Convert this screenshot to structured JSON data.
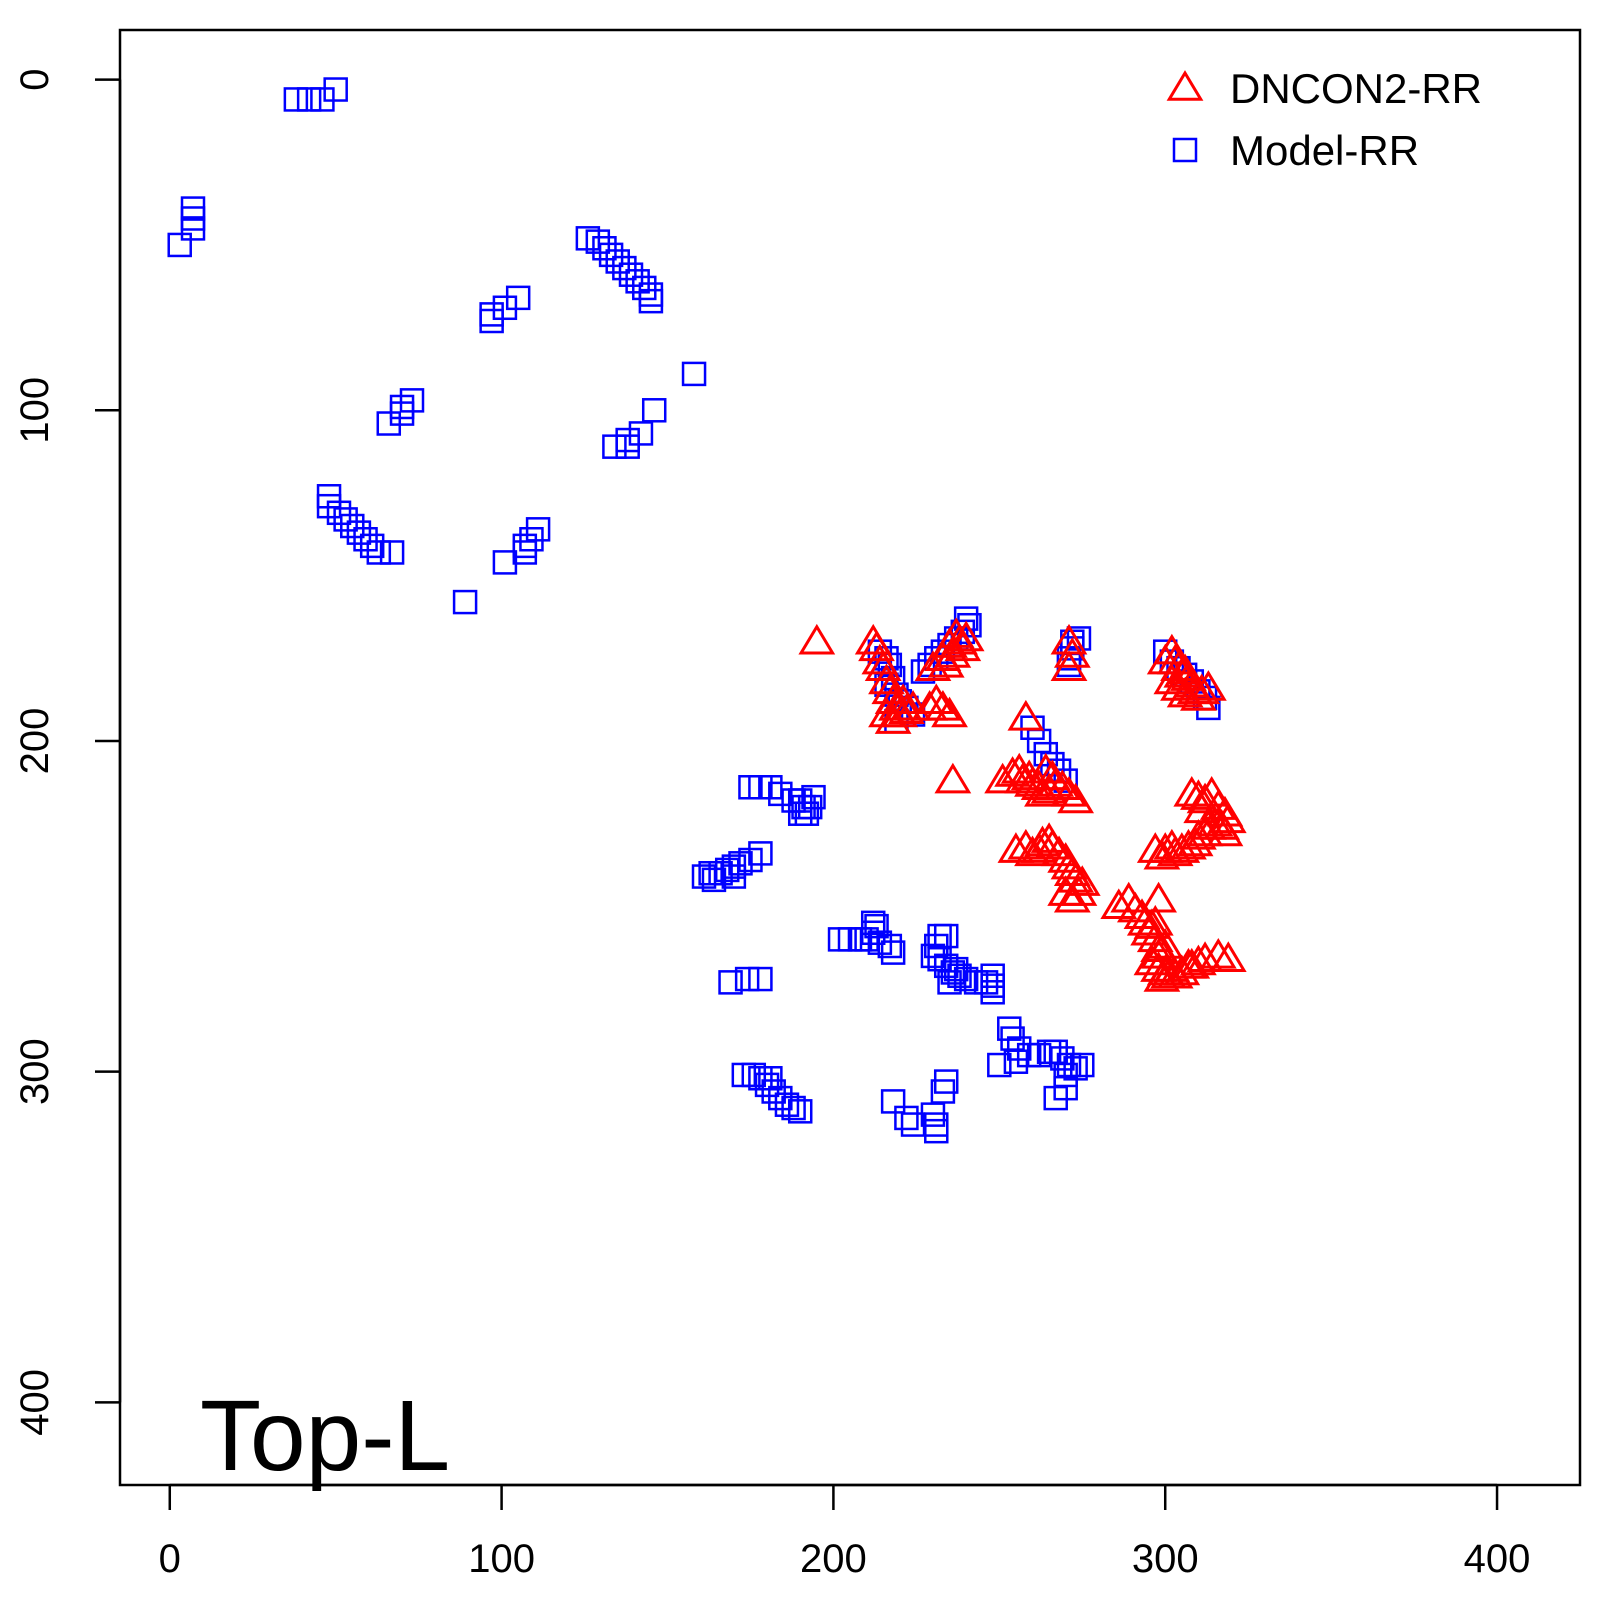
{
  "chart_data": {
    "type": "scatter",
    "corner_label": "Top-L",
    "xlim": [
      -15,
      425
    ],
    "ylim": [
      -15,
      425
    ],
    "y_reversed": true,
    "x_ticks": [
      0,
      100,
      200,
      300,
      400
    ],
    "y_ticks": [
      0,
      100,
      200,
      300,
      400
    ],
    "grid": false,
    "legend_position": "top-right",
    "series": [
      {
        "name": "DNCON2-RR",
        "marker": "triangle",
        "color": "#ff0000",
        "points": [
          [
            195,
            170
          ],
          [
            212,
            170
          ],
          [
            213,
            172
          ],
          [
            214,
            176
          ],
          [
            215,
            178
          ],
          [
            216,
            182
          ],
          [
            217,
            185
          ],
          [
            218,
            188
          ],
          [
            219,
            190
          ],
          [
            220,
            192
          ],
          [
            216,
            192
          ],
          [
            218,
            194
          ],
          [
            222,
            191
          ],
          [
            224,
            190
          ],
          [
            221,
            188
          ],
          [
            229,
            190
          ],
          [
            231,
            188
          ],
          [
            233,
            190
          ],
          [
            235,
            192
          ],
          [
            230,
            178
          ],
          [
            233,
            175
          ],
          [
            235,
            171
          ],
          [
            237,
            168
          ],
          [
            238,
            170
          ],
          [
            239,
            172
          ],
          [
            240,
            169
          ],
          [
            236,
            174
          ],
          [
            234,
            177
          ],
          [
            236,
            212
          ],
          [
            258,
            193
          ],
          [
            271,
            170
          ],
          [
            272,
            174
          ],
          [
            271,
            178
          ],
          [
            300,
            176
          ],
          [
            302,
            173
          ],
          [
            303,
            176
          ],
          [
            304,
            178
          ],
          [
            305,
            180
          ],
          [
            306,
            179
          ],
          [
            307,
            181
          ],
          [
            308,
            183
          ],
          [
            309,
            185
          ],
          [
            310,
            187
          ],
          [
            311,
            185
          ],
          [
            313,
            184
          ],
          [
            302,
            182
          ],
          [
            304,
            184
          ],
          [
            306,
            186
          ],
          [
            251,
            212
          ],
          [
            254,
            210
          ],
          [
            256,
            209
          ],
          [
            257,
            212
          ],
          [
            259,
            211
          ],
          [
            260,
            213
          ],
          [
            262,
            214
          ],
          [
            263,
            216
          ],
          [
            265,
            215
          ],
          [
            267,
            213
          ],
          [
            269,
            214
          ],
          [
            271,
            216
          ],
          [
            273,
            218
          ],
          [
            264,
            209
          ],
          [
            266,
            211
          ],
          [
            255,
            233
          ],
          [
            258,
            232
          ],
          [
            260,
            234
          ],
          [
            262,
            233
          ],
          [
            263,
            231
          ],
          [
            265,
            230
          ],
          [
            266,
            232
          ],
          [
            268,
            234
          ],
          [
            270,
            236
          ],
          [
            271,
            238
          ],
          [
            272,
            240
          ],
          [
            273,
            242
          ],
          [
            275,
            243
          ],
          [
            272,
            248
          ],
          [
            274,
            246
          ],
          [
            270,
            246
          ],
          [
            286,
            250
          ],
          [
            289,
            248
          ],
          [
            291,
            251
          ],
          [
            293,
            253
          ],
          [
            294,
            255
          ],
          [
            295,
            258
          ],
          [
            296,
            256
          ],
          [
            297,
            260
          ],
          [
            298,
            263
          ],
          [
            298,
            265
          ],
          [
            296,
            267
          ],
          [
            298,
            269
          ],
          [
            300,
            270
          ],
          [
            299,
            272
          ],
          [
            301,
            271
          ],
          [
            302,
            269
          ],
          [
            303,
            271
          ],
          [
            305,
            270
          ],
          [
            307,
            268
          ],
          [
            308,
            268
          ],
          [
            310,
            267
          ],
          [
            312,
            266
          ],
          [
            316,
            265
          ],
          [
            319,
            266
          ],
          [
            298,
            248
          ],
          [
            297,
            255
          ],
          [
            300,
            262
          ],
          [
            297,
            233
          ],
          [
            299,
            235
          ],
          [
            300,
            233
          ],
          [
            302,
            232
          ],
          [
            303,
            234
          ],
          [
            305,
            233
          ],
          [
            307,
            232
          ],
          [
            309,
            231
          ],
          [
            310,
            229
          ],
          [
            312,
            228
          ],
          [
            313,
            226
          ],
          [
            315,
            225
          ],
          [
            317,
            226
          ],
          [
            318,
            228
          ],
          [
            319,
            224
          ],
          [
            308,
            216
          ],
          [
            310,
            217
          ],
          [
            312,
            218
          ],
          [
            314,
            216
          ],
          [
            316,
            220
          ],
          [
            318,
            222
          ],
          [
            311,
            221
          ]
        ]
      },
      {
        "name": "Model-RR",
        "marker": "square",
        "color": "#0000ff",
        "points": [
          [
            50,
            3
          ],
          [
            46,
            6
          ],
          [
            42,
            6
          ],
          [
            38,
            6
          ],
          [
            7,
            39
          ],
          [
            7,
            42
          ],
          [
            7,
            45
          ],
          [
            3,
            50
          ],
          [
            126,
            48
          ],
          [
            129,
            49
          ],
          [
            131,
            51
          ],
          [
            133,
            53
          ],
          [
            135,
            55
          ],
          [
            137,
            57
          ],
          [
            139,
            59
          ],
          [
            141,
            61
          ],
          [
            143,
            63
          ],
          [
            145,
            65
          ],
          [
            145,
            67
          ],
          [
            105,
            66
          ],
          [
            101,
            69
          ],
          [
            97,
            71
          ],
          [
            97,
            73
          ],
          [
            158,
            89
          ],
          [
            146,
            100
          ],
          [
            142,
            107
          ],
          [
            138,
            109
          ],
          [
            138,
            111
          ],
          [
            134,
            111
          ],
          [
            73,
            97
          ],
          [
            70,
            99
          ],
          [
            70,
            101
          ],
          [
            66,
            104
          ],
          [
            48,
            126
          ],
          [
            48,
            129
          ],
          [
            51,
            131
          ],
          [
            53,
            133
          ],
          [
            55,
            135
          ],
          [
            57,
            137
          ],
          [
            59,
            139
          ],
          [
            61,
            141
          ],
          [
            63,
            143
          ],
          [
            67,
            143
          ],
          [
            111,
            136
          ],
          [
            109,
            139
          ],
          [
            107,
            141
          ],
          [
            107,
            143
          ],
          [
            101,
            146
          ],
          [
            89,
            158
          ],
          [
            240,
            163
          ],
          [
            241,
            165
          ],
          [
            239,
            167
          ],
          [
            237,
            169
          ],
          [
            235,
            171
          ],
          [
            233,
            173
          ],
          [
            231,
            175
          ],
          [
            229,
            177
          ],
          [
            227,
            179
          ],
          [
            214,
            173
          ],
          [
            216,
            175
          ],
          [
            217,
            177
          ],
          [
            218,
            181
          ],
          [
            216,
            183
          ],
          [
            219,
            186
          ],
          [
            220,
            188
          ],
          [
            222,
            190
          ],
          [
            224,
            192
          ],
          [
            219,
            194
          ],
          [
            260,
            196
          ],
          [
            262,
            200
          ],
          [
            264,
            204
          ],
          [
            266,
            207
          ],
          [
            268,
            209
          ],
          [
            270,
            212
          ],
          [
            272,
            170
          ],
          [
            274,
            169
          ],
          [
            272,
            172
          ],
          [
            271,
            175
          ],
          [
            271,
            177
          ],
          [
            300,
            173
          ],
          [
            302,
            176
          ],
          [
            304,
            178
          ],
          [
            306,
            180
          ],
          [
            308,
            182
          ],
          [
            310,
            185
          ],
          [
            312,
            187
          ],
          [
            313,
            190
          ],
          [
            175,
            214
          ],
          [
            178,
            214
          ],
          [
            181,
            214
          ],
          [
            184,
            216
          ],
          [
            188,
            218
          ],
          [
            190,
            218
          ],
          [
            191,
            220
          ],
          [
            192,
            222
          ],
          [
            190,
            222
          ],
          [
            193,
            220
          ],
          [
            194,
            217
          ],
          [
            178,
            234
          ],
          [
            175,
            236
          ],
          [
            172,
            237
          ],
          [
            170,
            238
          ],
          [
            168,
            239
          ],
          [
            166,
            240
          ],
          [
            163,
            240
          ],
          [
            161,
            241
          ],
          [
            164,
            242
          ],
          [
            170,
            241
          ],
          [
            212,
            255
          ],
          [
            213,
            256
          ],
          [
            212,
            258
          ],
          [
            210,
            260
          ],
          [
            208,
            260
          ],
          [
            205,
            260
          ],
          [
            202,
            260
          ],
          [
            214,
            261
          ],
          [
            217,
            262
          ],
          [
            218,
            264
          ],
          [
            232,
            259
          ],
          [
            234,
            259
          ],
          [
            231,
            262
          ],
          [
            230,
            265
          ],
          [
            232,
            266
          ],
          [
            234,
            268
          ],
          [
            236,
            270
          ],
          [
            238,
            271
          ],
          [
            240,
            272
          ],
          [
            243,
            273
          ],
          [
            246,
            273
          ],
          [
            248,
            271
          ],
          [
            248,
            274
          ],
          [
            248,
            276
          ],
          [
            235,
            273
          ],
          [
            237,
            269
          ],
          [
            178,
            272
          ],
          [
            174,
            272
          ],
          [
            169,
            273
          ],
          [
            253,
            287
          ],
          [
            254,
            290
          ],
          [
            256,
            293
          ],
          [
            259,
            295
          ],
          [
            262,
            295
          ],
          [
            265,
            294
          ],
          [
            267,
            294
          ],
          [
            269,
            296
          ],
          [
            271,
            298
          ],
          [
            273,
            299
          ],
          [
            275,
            298
          ],
          [
            270,
            301
          ],
          [
            270,
            305
          ],
          [
            267,
            308
          ],
          [
            250,
            298
          ],
          [
            255,
            297
          ],
          [
            218,
            309
          ],
          [
            222,
            314
          ],
          [
            224,
            316
          ],
          [
            230,
            313
          ],
          [
            231,
            316
          ],
          [
            231,
            318
          ],
          [
            233,
            306
          ],
          [
            234,
            303
          ],
          [
            173,
            301
          ],
          [
            176,
            301
          ],
          [
            178,
            302
          ],
          [
            180,
            304
          ],
          [
            182,
            306
          ],
          [
            184,
            308
          ],
          [
            186,
            310
          ],
          [
            188,
            311
          ],
          [
            190,
            312
          ],
          [
            181,
            302
          ]
        ]
      }
    ]
  }
}
